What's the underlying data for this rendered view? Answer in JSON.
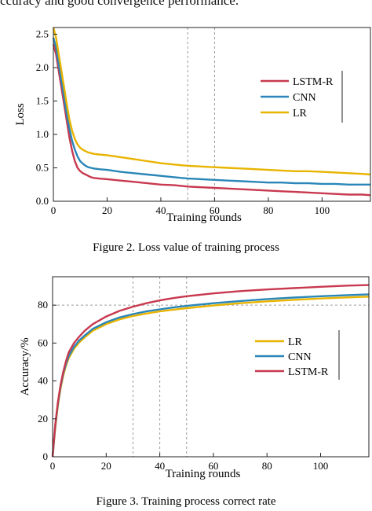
{
  "intro_text": "ccuracy and good convergence performance.",
  "charts": [
    {
      "caption": "Figure 2.    Loss value of training process",
      "type": "line",
      "xlabel": "Training rounds",
      "ylabel": "Loss",
      "xlim": [
        0,
        118
      ],
      "ylim": [
        0,
        2.6
      ],
      "xticks": [
        "0",
        "20",
        "40",
        "60",
        "80",
        "100"
      ],
      "yticks": [
        "0.0",
        "0.5",
        "1.0",
        "1.5",
        "2.0",
        "2.5"
      ],
      "reference_lines_x": [
        50,
        60
      ],
      "legend_position": "right",
      "series": [
        {
          "name": "LSTM-R",
          "color": "#c8394f",
          "x": [
            0,
            1,
            2,
            3,
            4,
            5,
            6,
            7,
            8,
            9,
            10,
            11,
            12,
            13,
            14,
            15,
            17,
            20,
            25,
            30,
            35,
            40,
            45,
            50,
            55,
            60,
            65,
            70,
            75,
            80,
            85,
            90,
            95,
            100,
            105,
            110,
            115,
            118
          ],
          "y": [
            2.35,
            2.2,
            1.95,
            1.7,
            1.45,
            1.2,
            0.95,
            0.75,
            0.6,
            0.5,
            0.45,
            0.42,
            0.4,
            0.38,
            0.36,
            0.35,
            0.34,
            0.33,
            0.31,
            0.29,
            0.27,
            0.25,
            0.24,
            0.22,
            0.21,
            0.2,
            0.19,
            0.18,
            0.17,
            0.16,
            0.15,
            0.14,
            0.13,
            0.12,
            0.11,
            0.1,
            0.1,
            0.09
          ]
        },
        {
          "name": "CNN",
          "color": "#2a86b8",
          "x": [
            0,
            1,
            2,
            3,
            4,
            5,
            6,
            7,
            8,
            9,
            10,
            11,
            12,
            13,
            14,
            15,
            17,
            20,
            25,
            30,
            35,
            40,
            45,
            50,
            55,
            60,
            65,
            70,
            75,
            80,
            85,
            90,
            95,
            100,
            105,
            110,
            115,
            118
          ],
          "y": [
            2.45,
            2.3,
            2.05,
            1.8,
            1.55,
            1.3,
            1.08,
            0.9,
            0.77,
            0.67,
            0.6,
            0.56,
            0.53,
            0.51,
            0.5,
            0.49,
            0.48,
            0.47,
            0.44,
            0.42,
            0.4,
            0.38,
            0.36,
            0.34,
            0.33,
            0.32,
            0.31,
            0.3,
            0.29,
            0.28,
            0.28,
            0.27,
            0.27,
            0.26,
            0.26,
            0.25,
            0.25,
            0.25
          ]
        },
        {
          "name": "LR",
          "color": "#e8b400",
          "x": [
            0,
            1,
            2,
            3,
            4,
            5,
            6,
            7,
            8,
            9,
            10,
            11,
            12,
            13,
            14,
            15,
            17,
            20,
            25,
            30,
            35,
            40,
            45,
            50,
            55,
            60,
            65,
            70,
            75,
            80,
            85,
            90,
            95,
            100,
            105,
            110,
            115,
            118
          ],
          "y": [
            2.6,
            2.45,
            2.2,
            1.95,
            1.7,
            1.45,
            1.22,
            1.05,
            0.93,
            0.85,
            0.8,
            0.77,
            0.75,
            0.73,
            0.72,
            0.71,
            0.7,
            0.69,
            0.66,
            0.63,
            0.6,
            0.57,
            0.55,
            0.53,
            0.52,
            0.51,
            0.5,
            0.49,
            0.48,
            0.47,
            0.46,
            0.45,
            0.45,
            0.44,
            0.43,
            0.42,
            0.41,
            0.4
          ]
        }
      ]
    },
    {
      "caption": "Figure 3.    Training process correct rate",
      "type": "line",
      "xlabel": "Training rounds",
      "ylabel": "Accuracy/%",
      "xlim": [
        0,
        118
      ],
      "ylim": [
        0,
        95
      ],
      "xticks": [
        "0",
        "20",
        "40",
        "60",
        "80",
        "100"
      ],
      "yticks": [
        "0",
        "20",
        "40",
        "60",
        "80"
      ],
      "reference_lines_x": [
        30,
        40,
        50
      ],
      "legend_position": "right",
      "series": [
        {
          "name": "LR",
          "color": "#e8b400",
          "x": [
            0,
            1,
            2,
            3,
            4,
            5,
            6,
            8,
            10,
            12,
            15,
            20,
            25,
            30,
            35,
            40,
            45,
            50,
            60,
            70,
            80,
            90,
            100,
            110,
            118
          ],
          "y": [
            0,
            15,
            27,
            36,
            43,
            48,
            52,
            57,
            60.5,
            63,
            66.5,
            70,
            72.5,
            74.3,
            75.6,
            76.7,
            77.6,
            78.4,
            79.8,
            81,
            82,
            82.8,
            83.5,
            84.1,
            84.5
          ]
        },
        {
          "name": "CNN",
          "color": "#2a86b8",
          "x": [
            0,
            1,
            2,
            3,
            4,
            5,
            6,
            8,
            10,
            12,
            15,
            20,
            25,
            30,
            35,
            40,
            45,
            50,
            60,
            70,
            80,
            90,
            100,
            110,
            118
          ],
          "y": [
            0,
            16,
            28,
            37,
            44,
            49,
            53,
            58,
            61.5,
            64,
            67.5,
            71,
            73.5,
            75.3,
            76.7,
            77.8,
            78.8,
            79.6,
            81,
            82.2,
            83.2,
            84,
            84.7,
            85.3,
            85.7
          ]
        },
        {
          "name": "LSTM-R",
          "color": "#c8394f",
          "x": [
            0,
            1,
            2,
            3,
            4,
            5,
            6,
            8,
            10,
            12,
            15,
            20,
            25,
            30,
            35,
            40,
            45,
            50,
            60,
            70,
            80,
            90,
            100,
            110,
            118
          ],
          "y": [
            0,
            17,
            29,
            38,
            45,
            50.5,
            55,
            60,
            63.5,
            66.5,
            70,
            74,
            77,
            79.2,
            81,
            82.5,
            83.7,
            84.7,
            86.2,
            87.4,
            88.3,
            89,
            89.7,
            90.3,
            90.6
          ]
        }
      ]
    }
  ]
}
